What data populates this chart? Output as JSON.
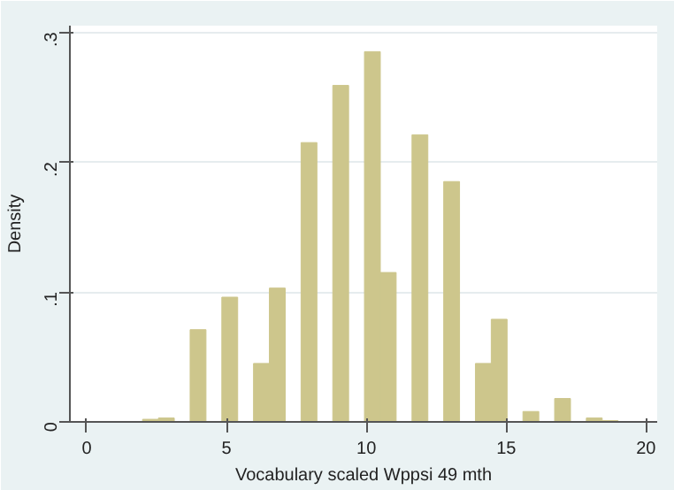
{
  "chart_data": {
    "type": "histogram",
    "xlabel": "Vocabulary scaled Wppsi 49 mth",
    "ylabel": "Density",
    "bins": [
      2,
      2.5667,
      3.1333,
      3.7,
      4.2667,
      4.8333,
      5.4,
      5.9667,
      6.5333,
      7.1,
      7.6667,
      8.2333,
      8.8,
      9.3667,
      9.9333,
      10.5,
      11.0667,
      11.6333,
      12.2,
      12.7667,
      13.3333,
      13.9,
      14.4667,
      15.0333,
      15.6,
      16.1667,
      16.7333,
      17.3,
      17.8667,
      18.4333,
      19
    ],
    "values": [
      0.002,
      0.003,
      0,
      0.071,
      0,
      0.096,
      0,
      0.045,
      0.103,
      0,
      0.215,
      0,
      0.259,
      0,
      0.285,
      0.115,
      0,
      0.221,
      0,
      0.185,
      0,
      0.045,
      0.079,
      0,
      0.008,
      0,
      0.018,
      0,
      0.003,
      0.001
    ],
    "color": "#cdc68c",
    "xlim": [
      -0.6,
      20.4
    ],
    "ylim": [
      0,
      0.305
    ],
    "xticks": [
      0,
      5,
      10,
      15,
      20
    ],
    "yticks": [
      {
        "value": 0,
        "label": "0"
      },
      {
        "value": 0.1,
        "label": ".1"
      },
      {
        "value": 0.2,
        "label": ".2"
      },
      {
        "value": 0.3,
        "label": ".3"
      }
    ],
    "grid": "y"
  }
}
